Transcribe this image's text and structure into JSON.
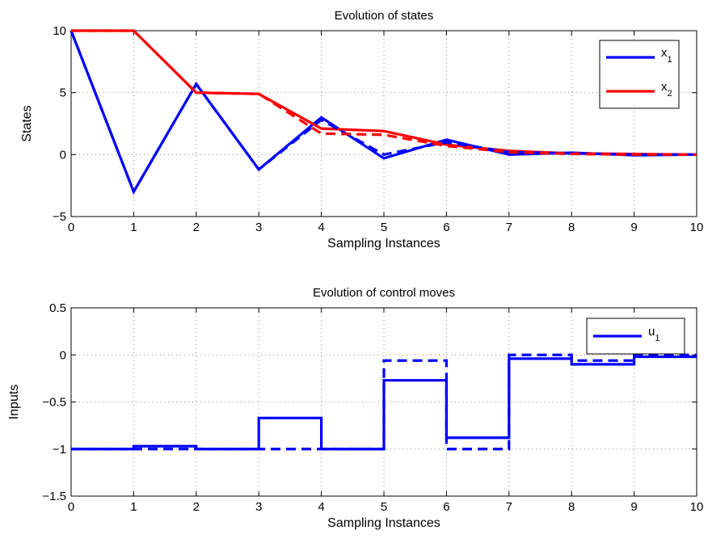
{
  "chart_data": [
    {
      "type": "line",
      "title": "Evolution of states",
      "xlabel": "Sampling Instances",
      "ylabel": "States",
      "xlim": [
        0,
        10
      ],
      "ylim": [
        -5,
        10
      ],
      "xticks": [
        0,
        1,
        2,
        3,
        4,
        5,
        6,
        7,
        8,
        9,
        10
      ],
      "yticks": [
        -5,
        0,
        5,
        10
      ],
      "grid": true,
      "legend_position": "top-right",
      "series": [
        {
          "name": "x",
          "subscript": "1",
          "color": "#0000ff",
          "style": "solid",
          "legend": true,
          "x": [
            0,
            1,
            2,
            3,
            4,
            5,
            6,
            7,
            8,
            9,
            10
          ],
          "y": [
            10,
            -3,
            5.7,
            -1.2,
            3,
            -0.3,
            1.2,
            0,
            0.15,
            -0.05,
            0
          ]
        },
        {
          "name": "x",
          "subscript": "2",
          "color": "#ff0000",
          "style": "solid",
          "legend": true,
          "x": [
            0,
            1,
            2,
            3,
            4,
            5,
            6,
            7,
            8,
            9,
            10
          ],
          "y": [
            10,
            10,
            5,
            4.9,
            2.1,
            1.9,
            0.8,
            0.3,
            0.1,
            0.05,
            0
          ]
        },
        {
          "name": "",
          "color": "#0000ff",
          "style": "dashed",
          "legend": false,
          "x": [
            0,
            1,
            2,
            3,
            4,
            5,
            6,
            7,
            8,
            9,
            10
          ],
          "y": [
            10,
            -3,
            5.7,
            -1.2,
            2.8,
            0,
            1,
            0.2,
            0.1,
            0,
            0
          ]
        },
        {
          "name": "",
          "color": "#ff0000",
          "style": "dashed",
          "legend": false,
          "x": [
            0,
            1,
            2,
            3,
            4,
            5,
            6,
            7,
            8,
            9,
            10
          ],
          "y": [
            10,
            10,
            5,
            4.9,
            1.7,
            1.6,
            0.7,
            0.2,
            0.05,
            0,
            0
          ]
        }
      ]
    },
    {
      "type": "line",
      "title": "Evolution of control moves",
      "xlabel": "Sampling Instances",
      "ylabel": "Inputs",
      "xlim": [
        0,
        10
      ],
      "ylim": [
        -1.5,
        0.5
      ],
      "xticks": [
        0,
        1,
        2,
        3,
        4,
        5,
        6,
        7,
        8,
        9,
        10
      ],
      "yticks": [
        -1.5,
        -1,
        -0.5,
        0,
        0.5
      ],
      "grid": true,
      "legend_position": "top-right",
      "step": true,
      "series": [
        {
          "name": "u",
          "subscript": "1",
          "color": "#0000ff",
          "style": "solid",
          "legend": true,
          "x": [
            0,
            1,
            2,
            3,
            4,
            5,
            6,
            7,
            8,
            9,
            10
          ],
          "y": [
            -1,
            -0.97,
            -1,
            -0.67,
            -1,
            -0.27,
            -0.88,
            -0.04,
            -0.1,
            -0.02,
            -0.02
          ]
        },
        {
          "name": "",
          "color": "#0000ff",
          "style": "dashed",
          "legend": false,
          "x": [
            0,
            1,
            2,
            3,
            4,
            5,
            6,
            7,
            8,
            9,
            10
          ],
          "y": [
            -1,
            -1,
            -1,
            -1,
            -1,
            -0.06,
            -1,
            0,
            -0.06,
            0,
            0
          ]
        }
      ]
    }
  ]
}
